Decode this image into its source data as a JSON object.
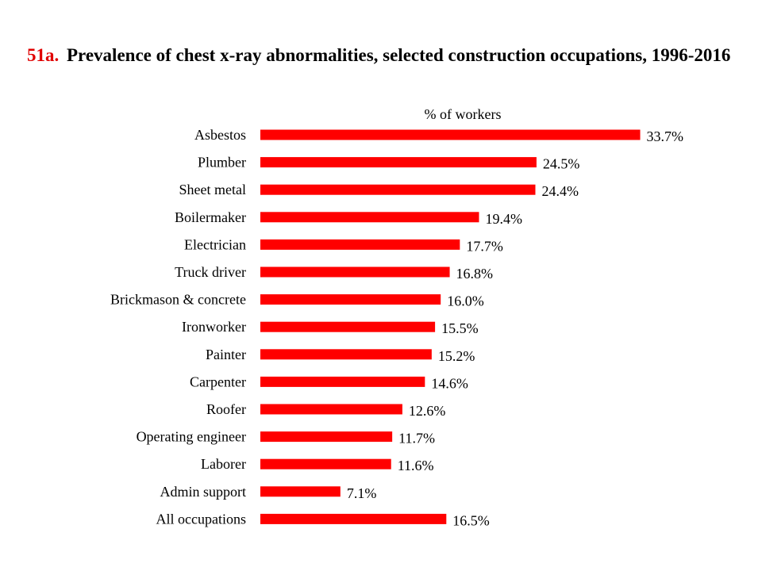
{
  "title": {
    "number": "51a.",
    "text": "Prevalence of chest x-ray abnormalities, selected construction occupations, 1996-2016"
  },
  "colors": {
    "bar": "#ff0000",
    "title_number": "#e00000"
  },
  "chart_data": {
    "type": "bar",
    "orientation": "horizontal",
    "unit_label": "% of workers",
    "value_suffix": "%",
    "categories": [
      "Asbestos",
      "Plumber",
      "Sheet metal",
      "Boilermaker",
      "Electrician",
      "Truck driver",
      "Brickmason & concrete",
      "Ironworker",
      "Painter",
      "Carpenter",
      "Roofer",
      "Operating engineer",
      "Laborer",
      "Admin support",
      "All occupations"
    ],
    "values": [
      33.7,
      24.5,
      24.4,
      19.4,
      17.7,
      16.8,
      16.0,
      15.5,
      15.2,
      14.6,
      12.6,
      11.7,
      11.6,
      7.1,
      16.5
    ],
    "data_labels": [
      "33.7%",
      "24.5%",
      "24.4%",
      "19.4%",
      "17.7%",
      "16.8%",
      "16.0%",
      "15.5%",
      "15.2%",
      "14.6%",
      "12.6%",
      "11.7%",
      "11.6%",
      "7.1%",
      "16.5%"
    ],
    "xlim": [
      0,
      33.7
    ],
    "grid": false,
    "legend": "none"
  }
}
